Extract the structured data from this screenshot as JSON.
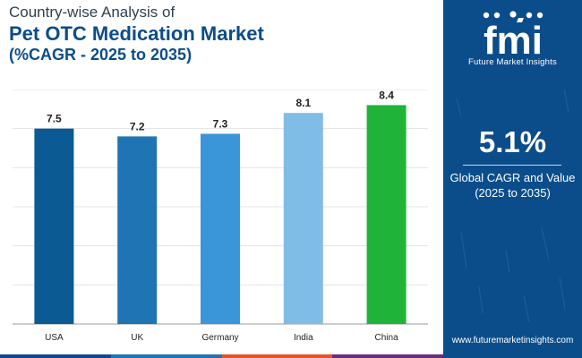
{
  "header": {
    "line1": "Country-wise Analysis of",
    "line2": "Pet OTC Medication Market",
    "line3": "(%CAGR - 2025 to 2035)"
  },
  "chart_data": {
    "type": "bar",
    "title": "Country-wise Analysis of Pet OTC Medication Market (%CAGR - 2025 to 2035)",
    "categories": [
      "USA",
      "UK",
      "Germany",
      "India",
      "China"
    ],
    "values": [
      7.5,
      7.2,
      7.3,
      8.1,
      8.4
    ],
    "value_labels": [
      "7.5",
      "7.2",
      "7.3",
      "8.1",
      "8.4"
    ],
    "colors": [
      "#0b5a93",
      "#1f74b4",
      "#3a96d8",
      "#80bde6",
      "#1fb33a"
    ],
    "xlabel": "",
    "ylabel": "",
    "ylim": [
      0,
      9
    ],
    "grid": true,
    "legend": "none"
  },
  "side_panel": {
    "logo_text": "fmi",
    "logo_caption": "Future Market Insights",
    "cagr_value": "5.1%",
    "cagr_label_line1": "Global CAGR and Value",
    "cagr_label_line2": "(2025 to 2035)",
    "website": "www.futuremarketinsights.com"
  },
  "colors": {
    "panel_bg": "#0b4d8a",
    "title_dark": "#2f4150",
    "title_blue": "#0b4d8a",
    "footer_segments": [
      "#0b4d8a",
      "#1f74b4",
      "#e8522b",
      "#6a2b86"
    ]
  }
}
